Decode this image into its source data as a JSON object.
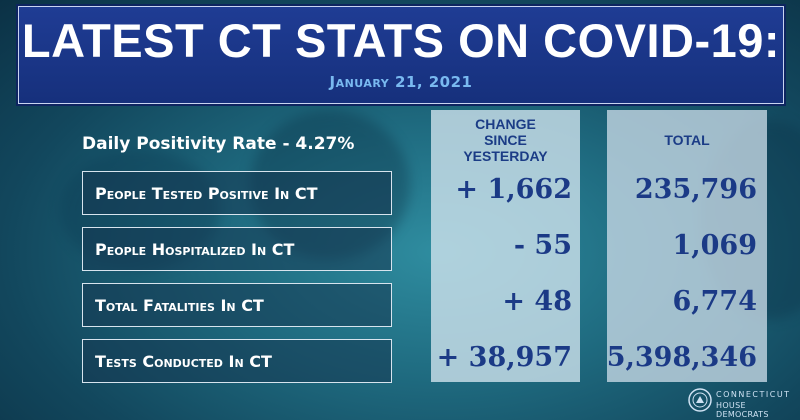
{
  "header": {
    "title": "LATEST CT STATS ON COVID-19:",
    "date": "January 21, 2021"
  },
  "positivity": {
    "text": "Daily Positivity Rate - 4.27%"
  },
  "columns": {
    "change_header": [
      "CHANGE",
      "SINCE",
      "YESTERDAY"
    ],
    "total_header": "TOTAL"
  },
  "rows": [
    {
      "label": "People Tested Positive In CT",
      "change": "+ 1,662",
      "total": "235,796"
    },
    {
      "label": "People Hospitalized In CT",
      "change": "- 55",
      "total": "1,069"
    },
    {
      "label": "Total Fatalities In CT",
      "change": "+ 48",
      "total": "6,774"
    },
    {
      "label": "Tests Conducted In CT",
      "change": "+ 38,957",
      "total": "5,398,346"
    }
  ],
  "logo": {
    "line1": "CONNECTICUT",
    "line2": "HOUSE DEMOCRATS"
  },
  "colors": {
    "banner": "#1f3c94",
    "date_text": "#79b9f0",
    "values": "#1b3a86",
    "background": "#1f6b80"
  },
  "icons": {
    "logo_mark": "state-seal-icon"
  }
}
